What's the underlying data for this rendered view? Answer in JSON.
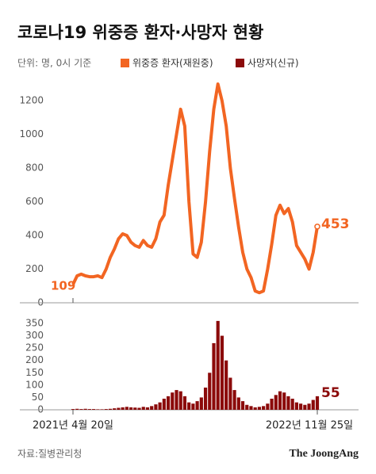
{
  "chart_data": [
    {
      "type": "line",
      "title": "코로나19 위중증 환자·사망자 현황",
      "subtitle": "단위: 명, 0시 기준",
      "categories": [
        "2021년 4월 20일",
        null,
        null,
        null,
        null,
        null,
        null,
        null,
        null,
        null,
        null,
        null,
        null,
        null,
        null,
        null,
        null,
        null,
        null,
        null,
        null,
        null,
        null,
        null,
        null,
        null,
        null,
        null,
        null,
        null,
        null,
        null,
        null,
        null,
        null,
        null,
        null,
        null,
        null,
        null,
        null,
        null,
        null,
        null,
        null,
        null,
        null,
        null,
        null,
        null,
        null,
        null,
        null,
        null,
        null,
        null,
        null,
        null,
        null,
        "2022년 11월 25일"
      ],
      "series": [
        {
          "name": "위중증 환자(재원중)",
          "color": "#f26522",
          "values": [
            109,
            160,
            170,
            160,
            155,
            155,
            160,
            150,
            200,
            270,
            320,
            380,
            410,
            400,
            360,
            340,
            330,
            370,
            340,
            330,
            380,
            480,
            520,
            700,
            850,
            1000,
            1150,
            1050,
            600,
            290,
            270,
            360,
            600,
            900,
            1150,
            1300,
            1200,
            1050,
            800,
            620,
            450,
            300,
            200,
            150,
            70,
            60,
            70,
            200,
            350,
            520,
            580,
            530,
            560,
            480,
            340,
            300,
            260,
            200,
            300,
            453
          ]
        }
      ],
      "ylim": [
        0,
        1300
      ],
      "yticks": [
        0,
        200,
        400,
        600,
        800,
        1000,
        1200
      ]
    },
    {
      "type": "bar",
      "categories": [
        "2021년 4월 20일",
        null,
        null,
        null,
        null,
        null,
        null,
        null,
        null,
        null,
        null,
        null,
        null,
        null,
        null,
        null,
        null,
        null,
        null,
        null,
        null,
        null,
        null,
        null,
        null,
        null,
        null,
        null,
        null,
        null,
        null,
        null,
        null,
        null,
        null,
        null,
        null,
        null,
        null,
        null,
        null,
        null,
        null,
        null,
        null,
        null,
        null,
        null,
        null,
        null,
        null,
        null,
        null,
        null,
        null,
        null,
        null,
        null,
        null,
        "2022년 11월 25일"
      ],
      "series": [
        {
          "name": "사망자(신규)",
          "color": "#8b0a0a",
          "values": [
            3,
            4,
            3,
            4,
            3,
            3,
            2,
            2,
            3,
            4,
            6,
            8,
            10,
            12,
            10,
            9,
            8,
            12,
            10,
            15,
            22,
            30,
            45,
            55,
            70,
            80,
            75,
            55,
            30,
            25,
            35,
            50,
            90,
            150,
            270,
            360,
            300,
            200,
            130,
            80,
            50,
            35,
            20,
            15,
            10,
            12,
            15,
            25,
            45,
            60,
            75,
            70,
            55,
            45,
            30,
            25,
            20,
            25,
            40,
            55
          ]
        }
      ],
      "ylim": [
        0,
        350
      ],
      "yticks": [
        0,
        50,
        100,
        150,
        200,
        250,
        300,
        350
      ]
    }
  ],
  "footer": {
    "source": "자료:질병관리청",
    "brand": "The JoongAng"
  }
}
